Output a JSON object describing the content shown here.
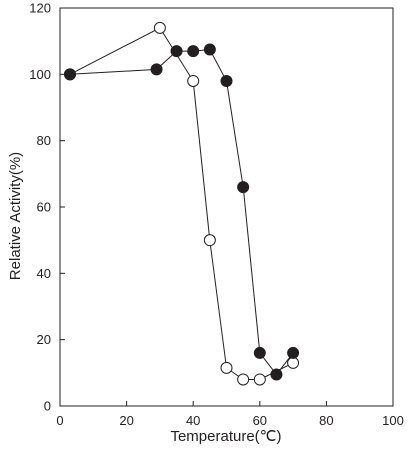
{
  "chart_data": {
    "type": "scatter",
    "xlabel": "Temperature(℃)",
    "ylabel": "Relative Activity(%)",
    "xlim": [
      0,
      100
    ],
    "ylim": [
      0,
      120
    ],
    "xticks": [
      0,
      20,
      40,
      60,
      80,
      100
    ],
    "yticks": [
      0,
      20,
      40,
      60,
      80,
      100,
      120
    ],
    "grid": false,
    "series": [
      {
        "marker": "open-circle",
        "color": "#231f20",
        "x": [
          3,
          30,
          40,
          45,
          50,
          55,
          60,
          70
        ],
        "y": [
          100,
          114,
          98,
          50,
          11.5,
          8,
          8,
          13
        ]
      },
      {
        "marker": "filled-circle",
        "color": "#231f20",
        "x": [
          3,
          29,
          35,
          40,
          45,
          50,
          55,
          60,
          65,
          70
        ],
        "y": [
          100,
          101.5,
          107,
          107,
          107.5,
          98,
          66,
          16,
          9.5,
          16
        ]
      }
    ]
  }
}
